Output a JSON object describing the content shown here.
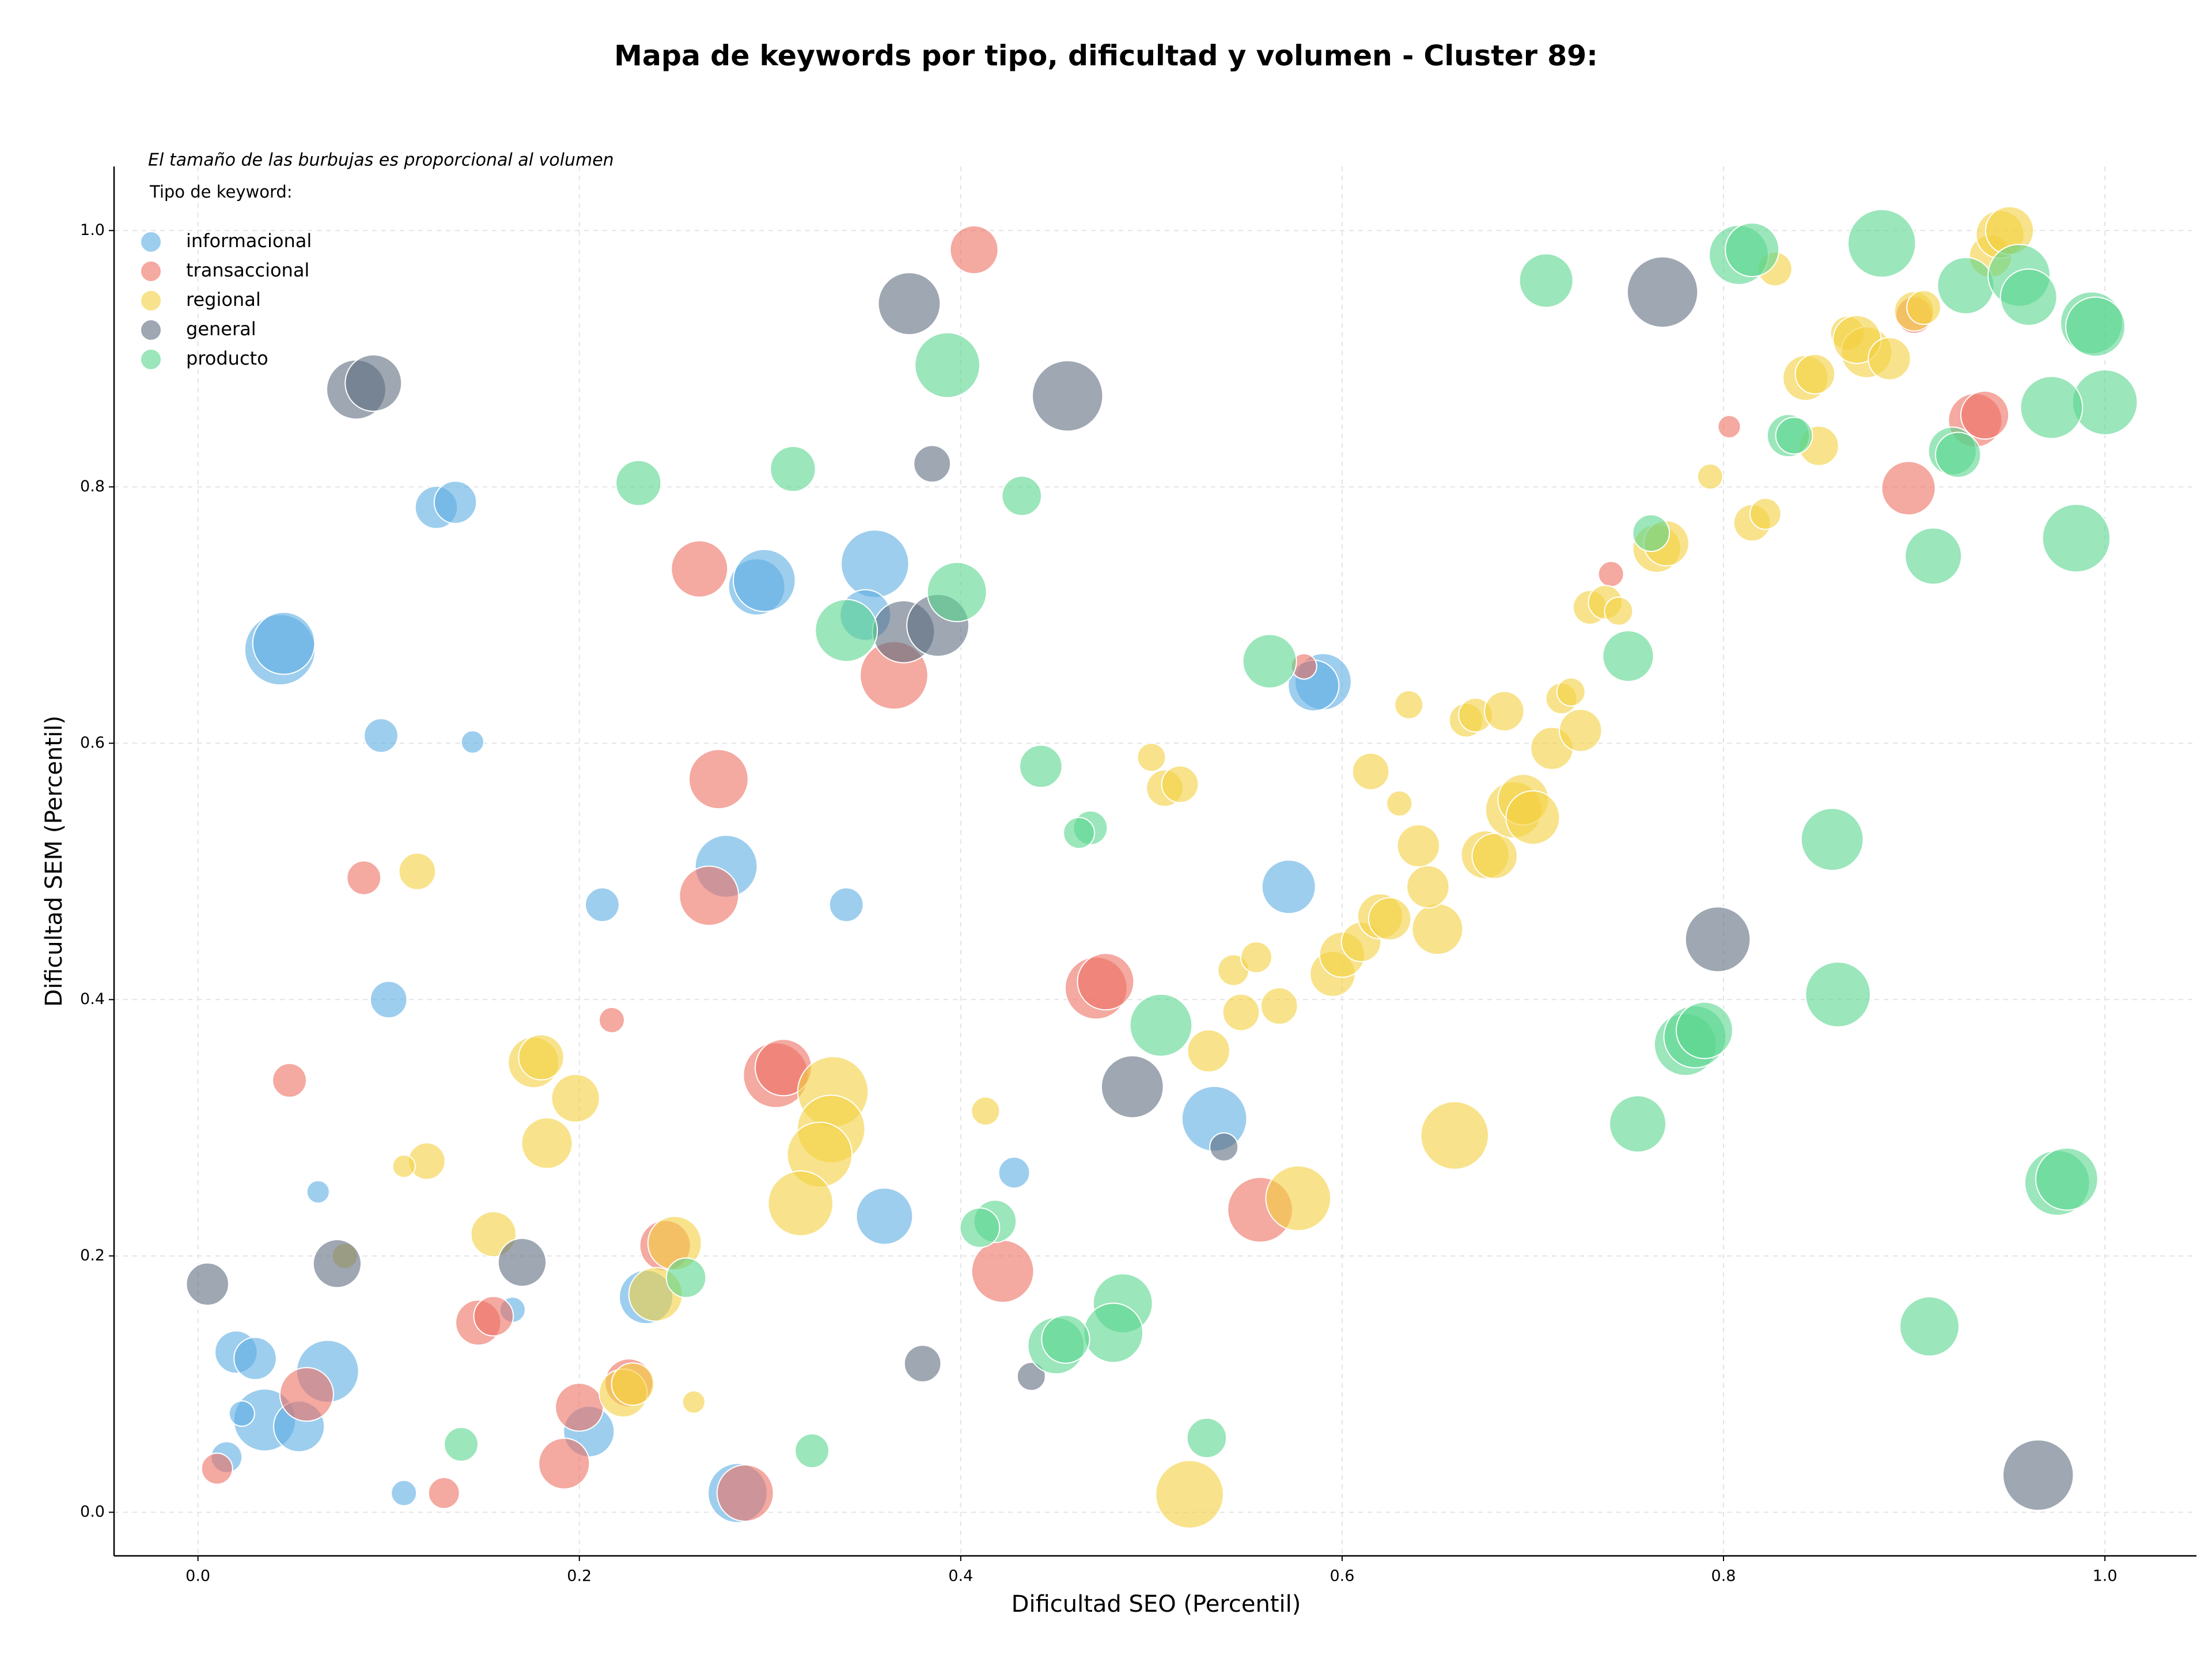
{
  "chart_data": {
    "type": "scatter",
    "title": "Mapa de keywords por tipo, dificultad y volumen - Cluster 89:",
    "subtitle": "El tamaño de las burbujas es proporcional al volumen",
    "legend_title": "Tipo de keyword:",
    "legend": "upper left",
    "x_label": "Dificultad SEO (Percentil)",
    "y_label": "Dificultad SEM (Percentil)",
    "xlim": [
      -0.044,
      1.048
    ],
    "ylim": [
      -0.034,
      1.05
    ],
    "xticks": [
      {
        "value": 0,
        "label": "0.0"
      },
      0.2,
      0.4,
      0.6,
      0.8,
      {
        "value": 1,
        "label": "1.0"
      }
    ],
    "yticks": [
      {
        "value": 0,
        "label": "0.0"
      },
      0.2,
      0.4,
      0.6,
      0.8,
      {
        "value": 1,
        "label": "1.0"
      }
    ],
    "grid": true,
    "series": [
      {
        "name": "informacional",
        "color": "#5dade2",
        "x": [
          0.043,
          0.045,
          0.125,
          0.135,
          0.096,
          0.144,
          0.1,
          0.212,
          0.277,
          0.34,
          0.293,
          0.297,
          0.355,
          0.35,
          0.59,
          0.585,
          0.572,
          0.533,
          0.36,
          0.428,
          0.063,
          0.068,
          0.02,
          0.03,
          0.035,
          0.023,
          0.015,
          0.053,
          0.108,
          0.165,
          0.205,
          0.235,
          0.283
        ],
        "values": [
          0.673,
          0.678,
          0.784,
          0.788,
          0.606,
          0.601,
          0.4,
          0.474,
          0.504,
          0.474,
          0.722,
          0.727,
          0.74,
          0.7,
          0.648,
          0.645,
          0.488,
          0.307,
          0.231,
          0.265,
          0.25,
          0.11,
          0.125,
          0.12,
          0.072,
          0.077,
          0.043,
          0.067,
          0.015,
          0.158,
          0.063,
          0.168,
          0.015
        ],
        "sizes": [
          625,
          484,
          225,
          225,
          144,
          64,
          169,
          144,
          484,
          144,
          400,
          484,
          576,
          324,
          400,
          324,
          361,
          529,
          400,
          121,
          64,
          484,
          225,
          225,
          484,
          81,
          121,
          324,
          81,
          81,
          324,
          361,
          441
        ]
      },
      {
        "name": "transaccional",
        "color": "#ec7063",
        "x": [
          0.407,
          0.263,
          0.273,
          0.268,
          0.365,
          0.087,
          0.217,
          0.048,
          0.303,
          0.307,
          0.471,
          0.476,
          0.422,
          0.557,
          0.58,
          0.741,
          0.803,
          0.897,
          0.932,
          0.937,
          0.9,
          0.147,
          0.155,
          0.057,
          0.2,
          0.192,
          0.226,
          0.287,
          0.129,
          0.01,
          0.245
        ],
        "values": [
          0.985,
          0.736,
          0.572,
          0.481,
          0.653,
          0.495,
          0.384,
          0.337,
          0.341,
          0.347,
          0.409,
          0.414,
          0.188,
          0.236,
          0.66,
          0.732,
          0.847,
          0.799,
          0.852,
          0.856,
          0.934,
          0.148,
          0.153,
          0.092,
          0.082,
          0.038,
          0.101,
          0.015,
          0.015,
          0.034,
          0.208
        ],
        "sizes": [
          289,
          400,
          441,
          441,
          576,
          144,
          81,
          144,
          529,
          400,
          484,
          400,
          484,
          529,
          81,
          81,
          64,
          361,
          361,
          289,
          169,
          256,
          196,
          361,
          289,
          324,
          289,
          400,
          121,
          121,
          324
        ]
      },
      {
        "name": "regional",
        "color": "#f4d03f",
        "x": [
          0.115,
          0.176,
          0.18,
          0.198,
          0.183,
          0.12,
          0.108,
          0.155,
          0.077,
          0.25,
          0.24,
          0.223,
          0.228,
          0.26,
          0.333,
          0.332,
          0.326,
          0.316,
          0.413,
          0.577,
          0.52,
          0.659,
          0.53,
          0.547,
          0.567,
          0.543,
          0.555,
          0.595,
          0.6,
          0.61,
          0.62,
          0.625,
          0.65,
          0.645,
          0.64,
          0.63,
          0.615,
          0.675,
          0.68,
          0.69,
          0.695,
          0.7,
          0.71,
          0.725,
          0.715,
          0.72,
          0.665,
          0.67,
          0.685,
          0.635,
          0.5,
          0.507,
          0.515,
          0.73,
          0.738,
          0.745,
          0.765,
          0.77,
          0.793,
          0.815,
          0.822,
          0.85,
          0.843,
          0.848,
          0.865,
          0.875,
          0.87,
          0.887,
          0.9,
          0.905,
          0.827,
          0.94,
          0.945,
          0.95
        ],
        "values": [
          0.5,
          0.351,
          0.355,
          0.323,
          0.288,
          0.274,
          0.27,
          0.217,
          0.2,
          0.21,
          0.17,
          0.093,
          0.1,
          0.086,
          0.328,
          0.299,
          0.279,
          0.241,
          0.313,
          0.245,
          0.014,
          0.294,
          0.36,
          0.39,
          0.395,
          0.423,
          0.433,
          0.42,
          0.435,
          0.445,
          0.465,
          0.463,
          0.455,
          0.488,
          0.52,
          0.553,
          0.578,
          0.513,
          0.512,
          0.548,
          0.556,
          0.542,
          0.596,
          0.61,
          0.635,
          0.64,
          0.618,
          0.622,
          0.625,
          0.63,
          0.589,
          0.565,
          0.568,
          0.706,
          0.71,
          0.703,
          0.752,
          0.756,
          0.808,
          0.772,
          0.779,
          0.832,
          0.885,
          0.888,
          0.92,
          0.905,
          0.915,
          0.9,
          0.937,
          0.94,
          0.97,
          0.98,
          0.997,
          1.0
        ],
        "sizes": [
          169,
          324,
          256,
          289,
          324,
          169,
          64,
          256,
          81,
          361,
          361,
          289,
          225,
          64,
          625,
          576,
          529,
          529,
          100,
          529,
          576,
          576,
          225,
          169,
          169,
          121,
          121,
          256,
          256,
          196,
          256,
          225,
          324,
          225,
          225,
          81,
          169,
          289,
          256,
          400,
          324,
          361,
          225,
          225,
          121,
          100,
          144,
          144,
          196,
          100,
          100,
          169,
          169,
          144,
          144,
          100,
          289,
          256,
          81,
          169,
          121,
          196,
          256,
          196,
          144,
          324,
          289,
          225,
          196,
          144,
          144,
          225,
          289,
          289
        ]
      },
      {
        "name": "general",
        "color": "#5d6d7e",
        "x": [
          0.083,
          0.092,
          0.373,
          0.456,
          0.385,
          0.37,
          0.388,
          0.49,
          0.538,
          0.17,
          0.073,
          0.005,
          0.38,
          0.437,
          0.768,
          0.797,
          0.965
        ],
        "values": [
          0.876,
          0.881,
          0.943,
          0.871,
          0.818,
          0.687,
          0.692,
          0.332,
          0.285,
          0.195,
          0.194,
          0.178,
          0.116,
          0.106,
          0.952,
          0.447,
          0.029
        ],
        "sizes": [
          441,
          400,
          484,
          625,
          169,
          484,
          484,
          484,
          100,
          289,
          289,
          225,
          169,
          100,
          625,
          529,
          625
        ]
      },
      {
        "name": "producto",
        "color": "#58d68d",
        "x": [
          0.231,
          0.312,
          0.393,
          0.432,
          0.398,
          0.34,
          0.442,
          0.468,
          0.462,
          0.562,
          0.505,
          0.418,
          0.41,
          0.256,
          0.138,
          0.322,
          0.529,
          0.485,
          0.48,
          0.45,
          0.455,
          0.707,
          0.808,
          0.815,
          0.883,
          0.927,
          0.955,
          0.96,
          0.993,
          0.995,
          1.0,
          0.972,
          0.834,
          0.837,
          0.92,
          0.923,
          0.91,
          0.985,
          0.762,
          0.75,
          0.857,
          0.86,
          0.78,
          0.785,
          0.79,
          0.755,
          0.975,
          0.98,
          0.908
        ],
        "values": [
          0.803,
          0.814,
          0.895,
          0.793,
          0.718,
          0.688,
          0.582,
          0.534,
          0.53,
          0.664,
          0.38,
          0.227,
          0.222,
          0.183,
          0.053,
          0.048,
          0.058,
          0.163,
          0.14,
          0.13,
          0.135,
          0.961,
          0.981,
          0.985,
          0.99,
          0.957,
          0.965,
          0.948,
          0.928,
          0.925,
          0.866,
          0.862,
          0.84,
          0.84,
          0.828,
          0.825,
          0.746,
          0.76,
          0.764,
          0.668,
          0.525,
          0.404,
          0.365,
          0.371,
          0.376,
          0.303,
          0.257,
          0.26,
          0.145
        ],
        "sizes": [
          256,
          256,
          529,
          196,
          441,
          484,
          225,
          144,
          121,
          361,
          484,
          225,
          196,
          196,
          144,
          144,
          196,
          441,
          441,
          400,
          289,
          361,
          441,
          361,
          576,
          400,
          484,
          400,
          484,
          441,
          529,
          484,
          225,
          169,
          289,
          256,
          400,
          576,
          169,
          324,
          484,
          529,
          484,
          484,
          400,
          400,
          529,
          484,
          441
        ]
      }
    ]
  }
}
